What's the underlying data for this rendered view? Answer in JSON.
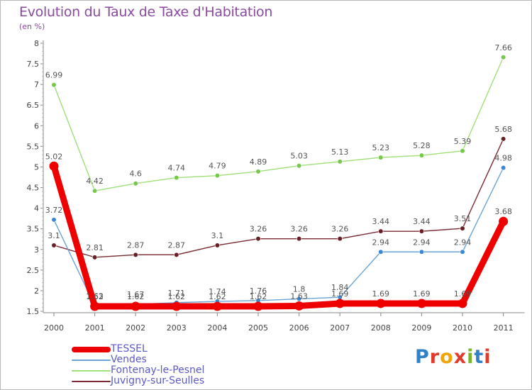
{
  "title": "Evolution du Taux de Taxe d'Habitation",
  "unit_label": "(en %)",
  "logo": {
    "text": "Proxiti",
    "letter_colors": [
      "#2f82c8",
      "#e23b2c",
      "#f0a30a",
      "#e23b2c",
      "#7ab52c",
      "#2f82c8",
      "#e23b2c"
    ]
  },
  "chart_data": {
    "type": "line",
    "title": "Evolution du Taux de Taxe d'Habitation",
    "unit": "(en %)",
    "xlabel": "",
    "ylabel": "",
    "categories": [
      "2000",
      "2001",
      "2002",
      "2003",
      "2004",
      "2005",
      "2006",
      "2007",
      "2008",
      "2009",
      "2010",
      "2011"
    ],
    "ylim": [
      1.5,
      8
    ],
    "yticks": [
      "1.5",
      "2",
      "2.5",
      "3",
      "3.5",
      "4",
      "4.5",
      "5",
      "5.5",
      "6",
      "6.5",
      "7",
      "7.5",
      "8"
    ],
    "grid": false,
    "legend_position": "bottom-left",
    "series": [
      {
        "name": "TESSEL",
        "color": "#ee0000",
        "marker_color": "#ee0000",
        "thick": true,
        "values": [
          5.02,
          1.62,
          1.62,
          1.62,
          1.62,
          1.62,
          1.63,
          1.69,
          1.69,
          1.69,
          1.69,
          3.68
        ],
        "labels": [
          "5.02",
          "1.62",
          "1.62",
          "1.62",
          "1.62",
          "1.62",
          "1.63",
          "1.69",
          "1.69",
          "1.69",
          "1.69",
          "3.68"
        ]
      },
      {
        "name": "Vendes",
        "color": "#6aa3d5",
        "marker_color": "#3b87d4",
        "thick": false,
        "values": [
          3.72,
          1.63,
          1.67,
          1.71,
          1.74,
          1.76,
          1.8,
          1.84,
          2.94,
          2.94,
          2.94,
          4.98
        ],
        "labels": [
          "3.72",
          "1.63",
          "1.67",
          "1.71",
          "1.74",
          "1.76",
          "1.8",
          "1.84",
          "2.94",
          "2.94",
          "2.94",
          "4.98"
        ]
      },
      {
        "name": "Fontenay-le-Pesnel",
        "color": "#9fe07a",
        "marker_color": "#74c84a",
        "thick": false,
        "values": [
          6.99,
          4.42,
          4.6,
          4.74,
          4.79,
          4.89,
          5.03,
          5.13,
          5.23,
          5.28,
          5.39,
          7.66
        ],
        "labels": [
          "6.99",
          "4.42",
          "4.6",
          "4.74",
          "4.79",
          "4.89",
          "5.03",
          "5.13",
          "5.23",
          "5.28",
          "5.39",
          "7.66"
        ]
      },
      {
        "name": "Juvigny-sur-Seulles",
        "color": "#7a2a32",
        "marker_color": "#6a1e26",
        "thick": false,
        "values": [
          3.1,
          2.81,
          2.87,
          2.87,
          3.1,
          3.26,
          3.26,
          3.26,
          3.44,
          3.44,
          3.51,
          5.68
        ],
        "labels": [
          "3.1",
          "2.81",
          "2.87",
          "2.87",
          "3.1",
          "3.26",
          "3.26",
          "3.26",
          "3.44",
          "3.44",
          "3.51",
          "5.68"
        ]
      }
    ]
  }
}
